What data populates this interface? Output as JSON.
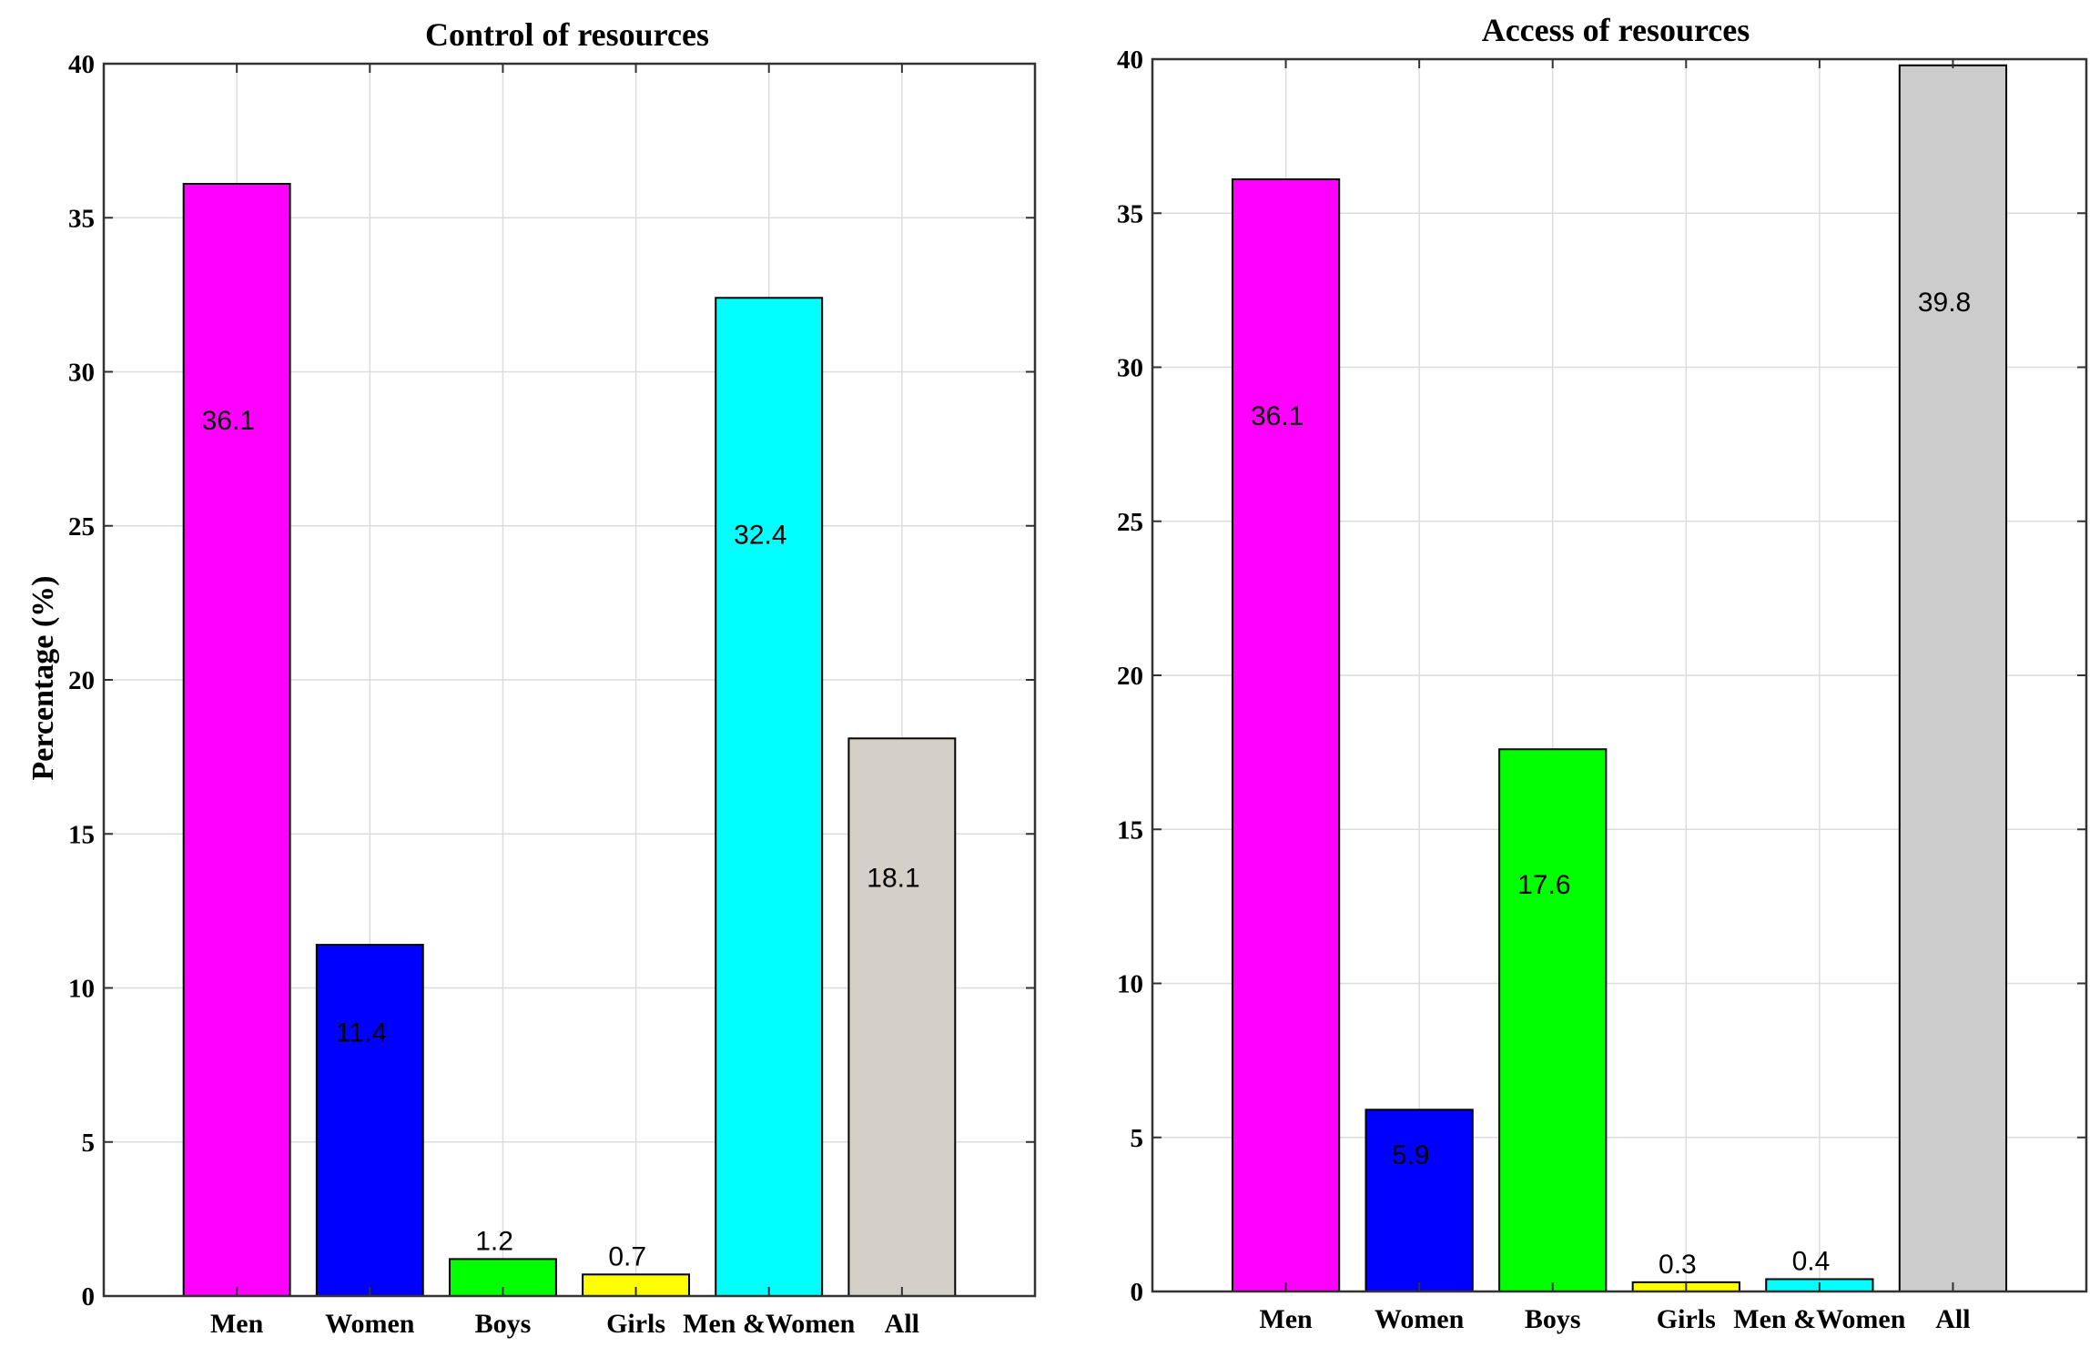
{
  "chart_data": [
    {
      "type": "bar",
      "title": "Control of resources",
      "xlabel": "",
      "ylabel": "Percentage (%)",
      "ylim": [
        0,
        40
      ],
      "yticks": [
        0,
        5,
        10,
        15,
        20,
        25,
        30,
        35,
        40
      ],
      "grid": true,
      "categories": [
        "Men",
        "Women",
        "Boys",
        "Girls",
        "Men &Women",
        "All"
      ],
      "values": [
        36.1,
        11.4,
        1.2,
        0.7,
        32.4,
        18.1
      ],
      "value_labels": [
        "36.1",
        "11.4",
        "1.2",
        "0.7",
        "32.4",
        "18.1"
      ],
      "colors": [
        "#ff00ff",
        "#0000ff",
        "#00ff00",
        "#ffff00",
        "#00ffff",
        "#d4d0c8"
      ]
    },
    {
      "type": "bar",
      "title": "Access of resources",
      "xlabel": "",
      "ylabel": "",
      "ylim": [
        0,
        40
      ],
      "yticks": [
        0,
        5,
        10,
        15,
        20,
        25,
        30,
        35,
        40
      ],
      "grid": true,
      "categories": [
        "Men",
        "Women",
        "Boys",
        "Girls",
        "Men &Women",
        "All"
      ],
      "values": [
        36.1,
        5.9,
        17.6,
        0.3,
        0.4,
        39.8
      ],
      "value_labels": [
        "36.1",
        "5.9",
        "17.6",
        "0.3",
        "0.4",
        "39.8"
      ],
      "colors": [
        "#ff00ff",
        "#0000ff",
        "#00ff00",
        "#ffff00",
        "#00ffff",
        "#cccccc"
      ]
    }
  ]
}
